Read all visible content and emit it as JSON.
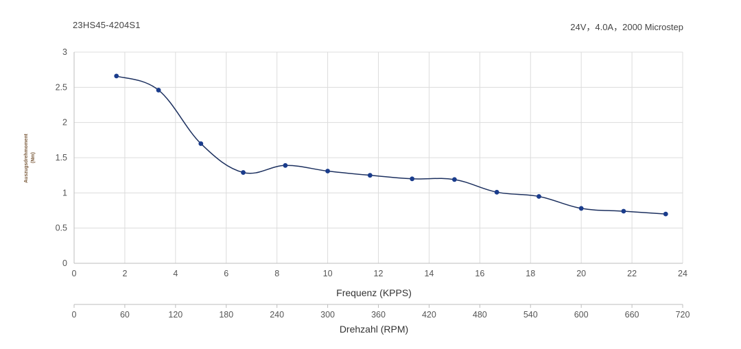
{
  "header": {
    "model": "23HS45-4204S1",
    "spec": "24V，4.0A，2000 Microstep"
  },
  "chart_data": {
    "type": "line",
    "title": "",
    "xlabel": "Frequenz (KPPS)",
    "x2label": "Drehzahl (RPM)",
    "ylabel_line1": "Auszugsdrehmoment",
    "ylabel_line2": "(Nm)",
    "xlim": [
      0,
      24
    ],
    "ylim": [
      0,
      3
    ],
    "x_ticks": [
      "0",
      "2",
      "4",
      "6",
      "8",
      "10",
      "12",
      "14",
      "16",
      "18",
      "20",
      "22",
      "24"
    ],
    "x2_ticks": [
      "0",
      "60",
      "120",
      "180",
      "240",
      "300",
      "360",
      "420",
      "480",
      "540",
      "600",
      "660",
      "720"
    ],
    "y_ticks": [
      "0",
      "0.5",
      "1",
      "1.5",
      "2",
      "2.5",
      "3"
    ],
    "grid": true,
    "line_color": "#1b2f5e",
    "marker_color": "#1a3c8c",
    "series": [
      {
        "x": [
          1.67,
          3.33,
          5.0,
          6.67,
          8.33,
          10.0,
          11.67,
          13.33,
          15.0,
          16.67,
          18.33,
          20.0,
          21.67,
          23.33
        ],
        "y": [
          2.66,
          2.46,
          1.7,
          1.29,
          1.39,
          1.31,
          1.25,
          1.2,
          1.19,
          1.01,
          0.95,
          0.78,
          0.74,
          0.7
        ]
      }
    ]
  }
}
